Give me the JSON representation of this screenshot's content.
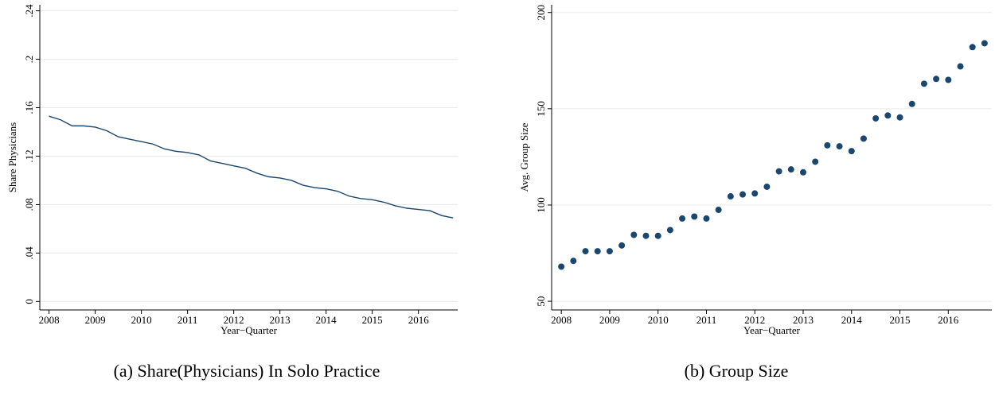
{
  "chart_data": [
    {
      "type": "line",
      "caption": "(a) Share(Physicians) In Solo Practice",
      "xlabel": "Year−Quarter",
      "ylabel": "Share Physicians",
      "color": "#1a476f",
      "grid": true,
      "x": [
        2008,
        2008.25,
        2008.5,
        2008.75,
        2009,
        2009.25,
        2009.5,
        2009.75,
        2010,
        2010.25,
        2010.5,
        2010.75,
        2011,
        2011.25,
        2011.5,
        2011.75,
        2012,
        2012.25,
        2012.5,
        2012.75,
        2013,
        2013.25,
        2013.5,
        2013.75,
        2014,
        2014.25,
        2014.5,
        2014.75,
        2015,
        2015.25,
        2015.5,
        2015.75,
        2016,
        2016.25,
        2016.5,
        2016.75
      ],
      "values": [
        0.153,
        0.15,
        0.145,
        0.145,
        0.144,
        0.141,
        0.136,
        0.134,
        0.132,
        0.13,
        0.126,
        0.124,
        0.123,
        0.121,
        0.116,
        0.114,
        0.112,
        0.11,
        0.106,
        0.103,
        0.102,
        0.1,
        0.096,
        0.094,
        0.093,
        0.091,
        0.087,
        0.085,
        0.084,
        0.082,
        0.079,
        0.077,
        0.076,
        0.075,
        0.071,
        0.069
      ],
      "xlim": [
        2007.8,
        2016.85
      ],
      "xticks": [
        2008,
        2009,
        2010,
        2011,
        2012,
        2013,
        2014,
        2015,
        2016
      ],
      "ylim": [
        -0.007,
        0.245
      ],
      "yticks": [
        0,
        {
          "value": 0.04,
          "label": ".04"
        },
        {
          "value": 0.08,
          "label": ".08"
        },
        {
          "value": 0.12,
          "label": ".12"
        },
        {
          "value": 0.16,
          "label": ".16"
        },
        {
          "value": 0.2,
          "label": ".2"
        },
        {
          "value": 0.24,
          "label": ".24"
        }
      ]
    },
    {
      "type": "scatter",
      "caption": "(b) Group Size",
      "xlabel": "Year−Quarter",
      "ylabel": "Avg. Group Size",
      "color": "#1a476f",
      "grid": true,
      "x": [
        2008,
        2008.25,
        2008.5,
        2008.75,
        2009,
        2009.25,
        2009.5,
        2009.75,
        2010,
        2010.25,
        2010.5,
        2010.75,
        2011,
        2011.25,
        2011.5,
        2011.75,
        2012,
        2012.25,
        2012.5,
        2012.75,
        2013,
        2013.25,
        2013.5,
        2013.75,
        2014,
        2014.25,
        2014.5,
        2014.75,
        2015,
        2015.25,
        2015.5,
        2015.75,
        2016,
        2016.25,
        2016.5,
        2016.75
      ],
      "values": [
        68,
        71,
        76,
        76,
        76,
        79,
        84.5,
        84,
        84,
        87,
        93,
        94,
        93,
        97.5,
        104.5,
        105.5,
        106,
        109.5,
        117.5,
        118.5,
        117,
        122.5,
        131,
        130.5,
        128,
        134.5,
        145,
        146.5,
        145.5,
        152.5,
        163,
        165.5,
        165,
        172,
        182,
        184
      ],
      "xlim": [
        2007.8,
        2016.9
      ],
      "xticks": [
        2008,
        2009,
        2010,
        2011,
        2012,
        2013,
        2014,
        2015,
        2016
      ],
      "ylim": [
        45.5,
        204
      ],
      "yticks": [
        50,
        100,
        150,
        200
      ]
    }
  ]
}
